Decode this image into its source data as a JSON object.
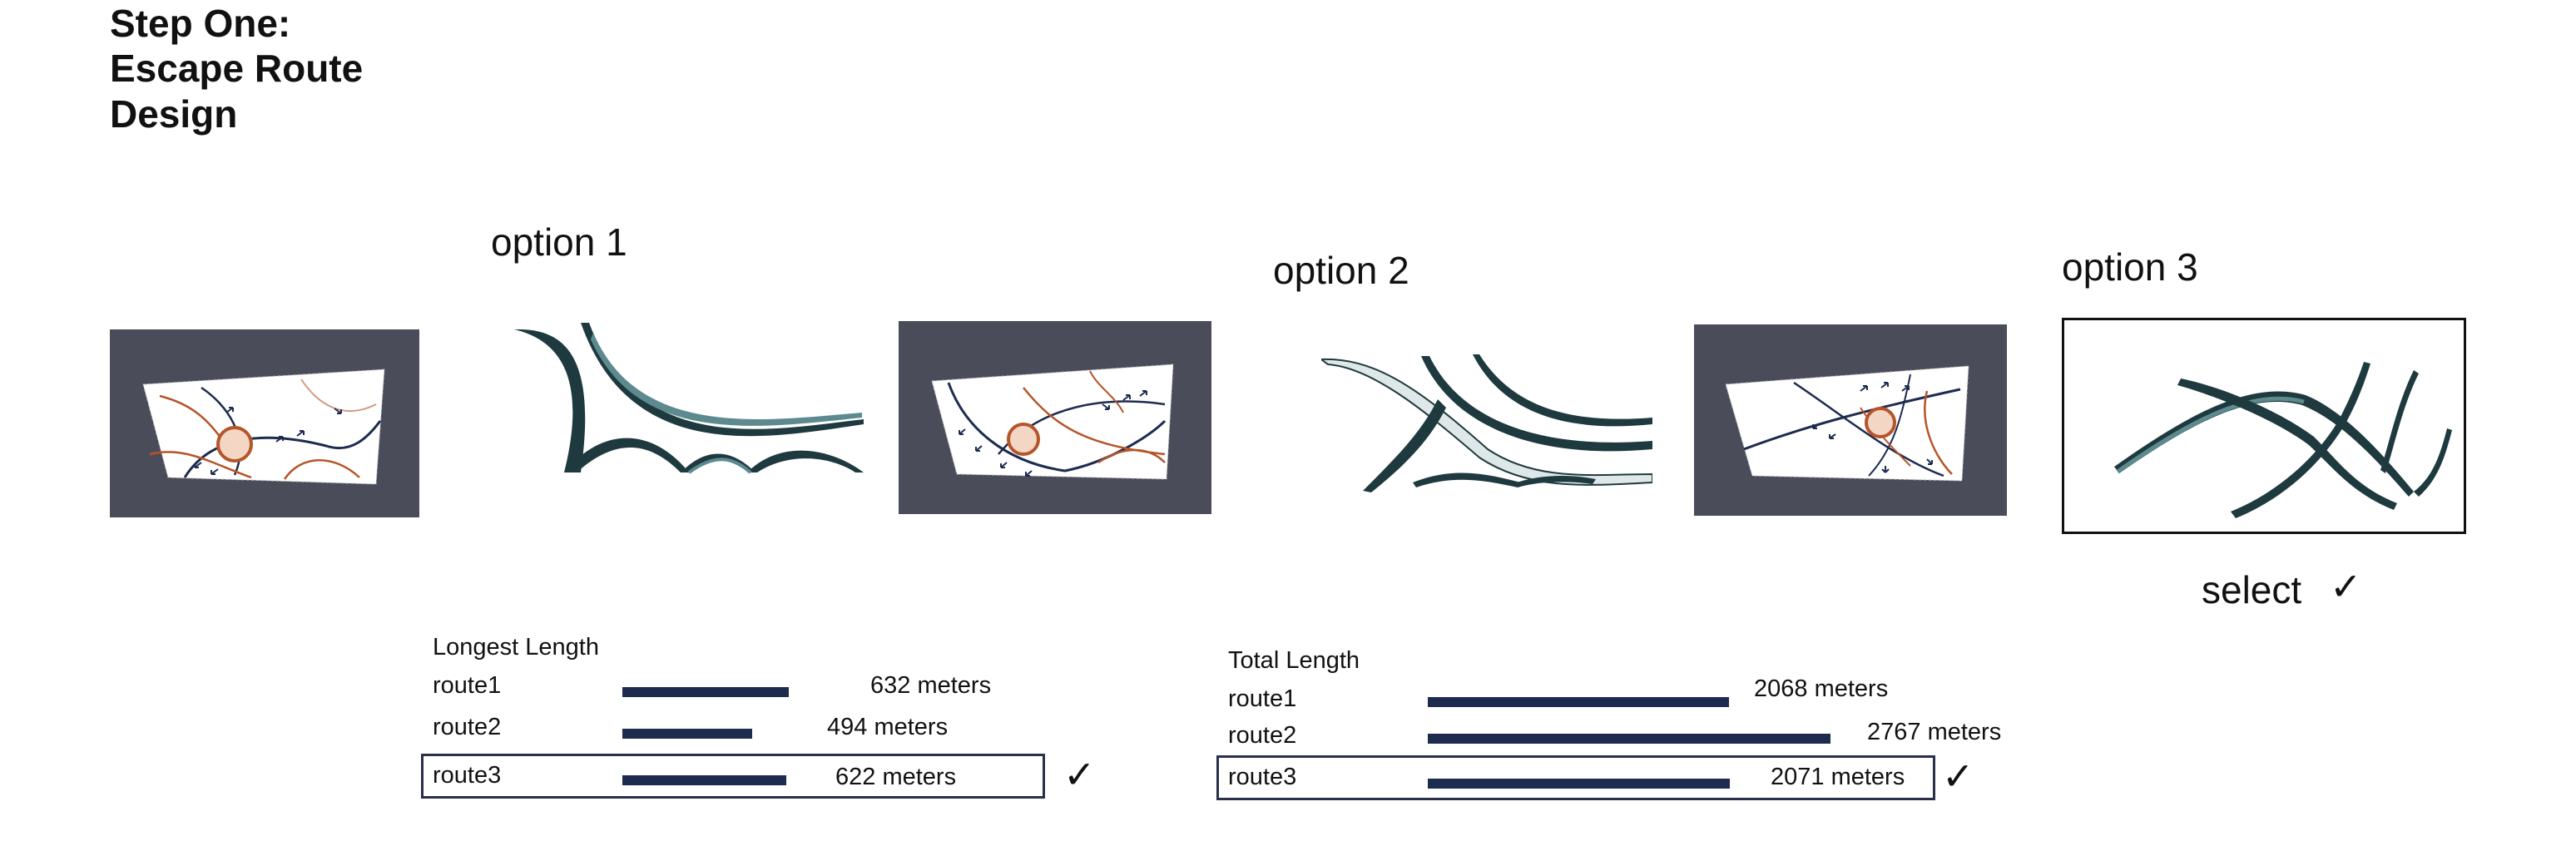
{
  "title": {
    "line1": "Step One:",
    "line2": "Escape Route",
    "line3": "Design"
  },
  "options": [
    {
      "label": "option 1"
    },
    {
      "label": "option 2"
    },
    {
      "label": "option 3"
    }
  ],
  "select": {
    "label": "select",
    "check": "✓"
  },
  "table1": {
    "heading": "Longest Length",
    "rows": [
      {
        "name": "route1",
        "value": "632 meters",
        "length_m": 632
      },
      {
        "name": "route2",
        "value": "494 meters",
        "length_m": 494
      },
      {
        "name": "route3",
        "value": "622 meters",
        "length_m": 622,
        "selected": true
      }
    ],
    "check": "✓"
  },
  "table2": {
    "heading": "Total Length",
    "rows": [
      {
        "name": "route1",
        "value": "2068 meters",
        "length_m": 2068
      },
      {
        "name": "route2",
        "value": "2767 meters",
        "length_m": 2767
      },
      {
        "name": "route3",
        "value": "2071 meters",
        "length_m": 2071,
        "selected": true
      }
    ],
    "check": "✓"
  },
  "colors": {
    "frame": "#4a4c5a",
    "bar": "#1d2b4f",
    "route_dark": "#1d2b4f",
    "route_orange": "#b5552a",
    "structure": "#1f3a3f",
    "structure_light": "#5d8a8f"
  },
  "icons": [
    "plaza-circle",
    "arrow-icon",
    "check-icon"
  ]
}
